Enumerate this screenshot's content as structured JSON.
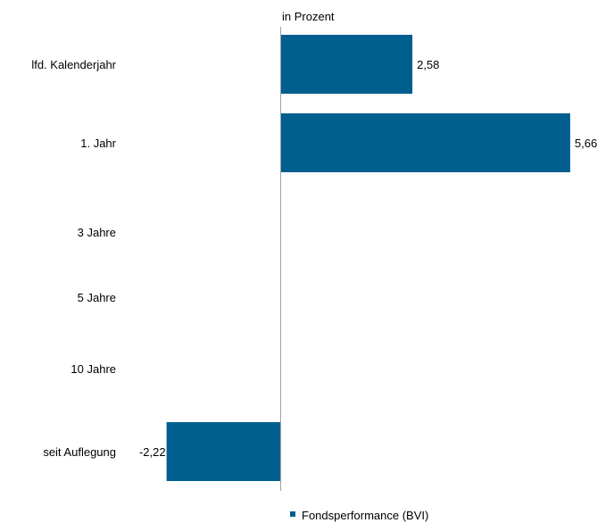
{
  "chart_data": {
    "type": "bar",
    "orientation": "horizontal",
    "unit_label": "in Prozent",
    "categories": [
      "lfd. Kalenderjahr",
      "1. Jahr",
      "3  Jahre",
      "5 Jahre",
      "10 Jahre",
      "seit Auflegung"
    ],
    "series": [
      {
        "name": "Fondsperformance (BVI)",
        "values": [
          2.58,
          5.66,
          null,
          null,
          null,
          -2.22
        ],
        "value_labels": [
          "2,58",
          "5,66",
          "",
          "",
          "",
          "-2,22"
        ]
      }
    ],
    "bar_color": "#005f8f",
    "axis_line_color": "#a0a0a0",
    "grid": false,
    "legend_position": "bottom"
  }
}
